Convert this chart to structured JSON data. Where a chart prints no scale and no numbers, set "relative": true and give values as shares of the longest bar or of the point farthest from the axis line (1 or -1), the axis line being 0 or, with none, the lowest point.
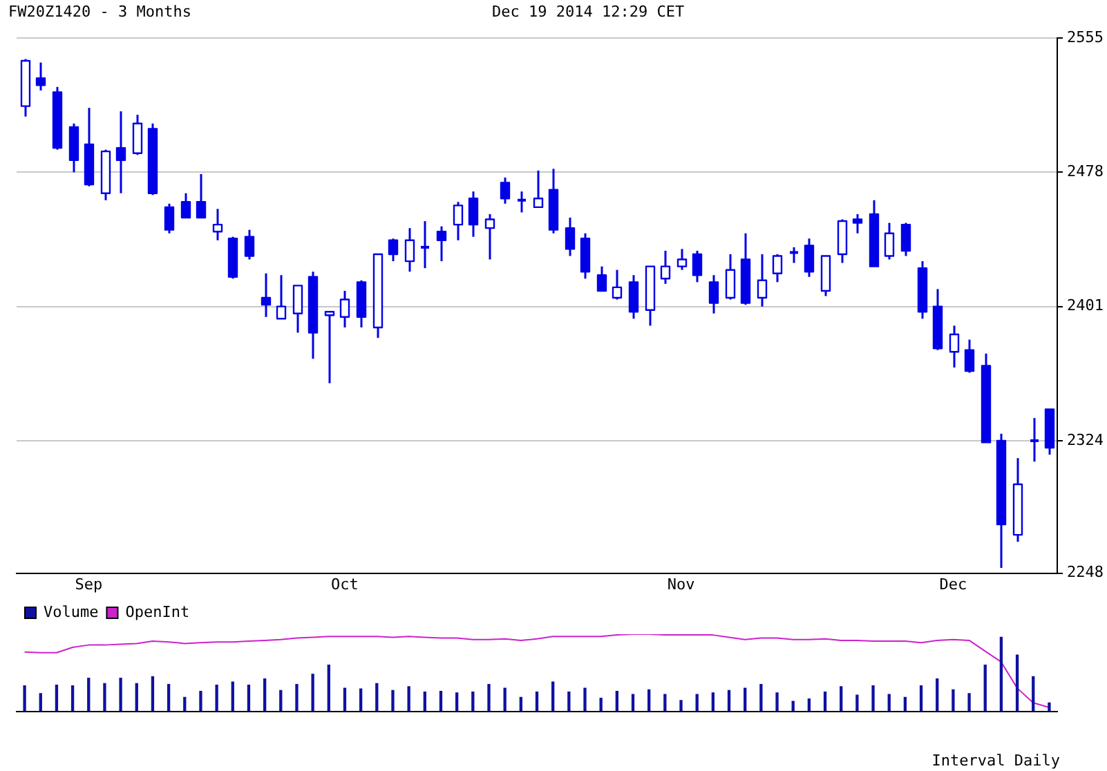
{
  "chart_data": [
    {
      "type": "candlestick",
      "title": "FW20Z1420 - 3 Months",
      "subtitle": "Dec 19 2014 12:29 CET",
      "color": "#0000e6",
      "grid": "y",
      "ylim": [
        2248,
        2555
      ],
      "yticks": [
        2248,
        2324,
        2401,
        2478,
        2555
      ],
      "categories": [
        null,
        null,
        null,
        null,
        "Sep",
        null,
        null,
        null,
        null,
        null,
        null,
        null,
        null,
        null,
        null,
        null,
        null,
        null,
        null,
        null,
        "Oct",
        null,
        null,
        null,
        null,
        null,
        null,
        null,
        null,
        null,
        null,
        null,
        null,
        null,
        null,
        null,
        null,
        null,
        null,
        null,
        null,
        "Nov",
        null,
        null,
        null,
        null,
        null,
        null,
        null,
        null,
        null,
        null,
        null,
        null,
        null,
        null,
        null,
        null,
        "Dec",
        null,
        null,
        null,
        null,
        null,
        null
      ],
      "colors": [
        "#ffffff",
        "#0000e6",
        "#0000e6",
        "#0000e6",
        "#0000e6",
        "#ffffff",
        "#0000e6",
        "#ffffff",
        "#0000e6",
        "#0000e6",
        "#0000e6",
        "#0000e6",
        "#ffffff",
        "#0000e6",
        "#0000e6",
        "#0000e6",
        "#ffffff",
        "#ffffff",
        "#0000e6",
        "#ffffff",
        "#ffffff",
        "#0000e6",
        "#ffffff",
        "#0000e6",
        "#ffffff",
        "#0000e6",
        "#0000e6",
        "#ffffff",
        "#0000e6",
        "#ffffff",
        "#0000e6",
        "#0000e6",
        "#ffffff",
        "#0000e6",
        "#0000e6",
        "#0000e6",
        "#0000e6",
        "#ffffff",
        "#0000e6",
        "#ffffff",
        "#ffffff",
        "#ffffff",
        "#0000e6",
        "#0000e6",
        "#ffffff",
        "#0000e6",
        "#ffffff",
        "#ffffff",
        "#0000e6",
        "#0000e6",
        "#ffffff",
        "#ffffff",
        "#0000e6",
        "#0000e6",
        "#ffffff",
        "#0000e6",
        "#0000e6",
        "#0000e6",
        "#ffffff",
        "#0000e6",
        "#0000e6",
        "#0000e6",
        "#ffffff",
        "#0000e6",
        "#0000e6"
      ],
      "ohlc": [
        [
          2516,
          2543,
          2510,
          2542
        ],
        [
          2532,
          2541,
          2525,
          2528
        ],
        [
          2524,
          2527,
          2491,
          2492
        ],
        [
          2504,
          2506,
          2478,
          2485
        ],
        [
          2494,
          2515,
          2470,
          2471
        ],
        [
          2466,
          2491,
          2462,
          2490
        ],
        [
          2492,
          2513,
          2466,
          2485
        ],
        [
          2489,
          2511,
          2488,
          2506
        ],
        [
          2503,
          2506,
          2465,
          2466
        ],
        [
          2458,
          2460,
          2443,
          2445
        ],
        [
          2461,
          2466,
          2452,
          2452
        ],
        [
          2461,
          2477,
          2452,
          2452
        ],
        [
          2444,
          2457,
          2439,
          2448
        ],
        [
          2440,
          2441,
          2417,
          2418
        ],
        [
          2441,
          2445,
          2428,
          2430
        ],
        [
          2406,
          2420,
          2395,
          2402
        ],
        [
          2394,
          2419,
          2394,
          2401
        ],
        [
          2397,
          2413,
          2386,
          2413
        ],
        [
          2418,
          2421,
          2371,
          2386
        ],
        [
          2396,
          2398,
          2357,
          2398
        ],
        [
          2395,
          2410,
          2389,
          2405
        ],
        [
          2415,
          2416,
          2389,
          2395
        ],
        [
          2389,
          2431,
          2383,
          2431
        ],
        [
          2439,
          2440,
          2427,
          2431
        ],
        [
          2427,
          2446,
          2421,
          2439
        ],
        [
          2435,
          2450,
          2423,
          2435
        ],
        [
          2444,
          2447,
          2427,
          2439
        ],
        [
          2448,
          2461,
          2439,
          2459
        ],
        [
          2463,
          2467,
          2441,
          2448
        ],
        [
          2446,
          2454,
          2428,
          2451
        ],
        [
          2472,
          2475,
          2460,
          2463
        ],
        [
          2462,
          2467,
          2455,
          2462
        ],
        [
          2458,
          2479,
          2458,
          2463
        ],
        [
          2468,
          2480,
          2443,
          2445
        ],
        [
          2446,
          2452,
          2430,
          2434
        ],
        [
          2440,
          2443,
          2417,
          2421
        ],
        [
          2419,
          2424,
          2410,
          2410
        ],
        [
          2406,
          2422,
          2405,
          2412
        ],
        [
          2415,
          2419,
          2394,
          2398
        ],
        [
          2399,
          2424,
          2390,
          2424
        ],
        [
          2417,
          2433,
          2414,
          2424
        ],
        [
          2424,
          2434,
          2422,
          2428
        ],
        [
          2431,
          2433,
          2415,
          2419
        ],
        [
          2415,
          2419,
          2397,
          2403
        ],
        [
          2406,
          2431,
          2405,
          2422
        ],
        [
          2428,
          2443,
          2402,
          2403
        ],
        [
          2406,
          2431,
          2401,
          2416
        ],
        [
          2420,
          2431,
          2415,
          2430
        ],
        [
          2432,
          2435,
          2426,
          2432
        ],
        [
          2436,
          2440,
          2418,
          2421
        ],
        [
          2410,
          2430,
          2407,
          2430
        ],
        [
          2431,
          2451,
          2426,
          2450
        ],
        [
          2451,
          2454,
          2443,
          2449
        ],
        [
          2454,
          2462,
          2424,
          2424
        ],
        [
          2430,
          2449,
          2428,
          2443
        ],
        [
          2448,
          2449,
          2430,
          2433
        ],
        [
          2423,
          2427,
          2394,
          2398
        ],
        [
          2401,
          2411,
          2376,
          2377
        ],
        [
          2375,
          2390,
          2366,
          2385
        ],
        [
          2376,
          2382,
          2363,
          2364
        ],
        [
          2367,
          2374,
          2323,
          2323
        ],
        [
          2324,
          2328,
          2251,
          2276
        ],
        [
          2270,
          2314,
          2266,
          2299
        ],
        [
          2324,
          2337,
          2312,
          2324
        ],
        [
          2342,
          2342,
          2316,
          2320
        ]
      ]
    },
    {
      "type": "bar",
      "relative": true,
      "legend": "top left",
      "marker": "none",
      "annotations": [
        "Interval Daily"
      ],
      "categories": [
        null,
        null,
        null,
        null,
        null,
        null,
        null,
        null,
        null,
        null,
        null,
        null,
        null,
        null,
        null,
        null,
        null,
        null,
        null,
        null,
        null,
        null,
        null,
        null,
        null,
        null,
        null,
        null,
        null,
        null,
        null,
        null,
        null,
        null,
        null,
        null,
        null,
        null,
        null,
        null,
        null,
        null,
        null,
        null,
        null,
        null,
        null,
        null,
        null,
        null,
        null,
        null,
        null,
        null,
        null,
        null,
        null,
        null,
        null,
        null,
        null,
        null,
        null,
        null,
        null
      ],
      "series": [
        {
          "name": "Volume",
          "color": "#1010a0",
          "values": [
            0.33,
            0.23,
            0.34,
            0.33,
            0.43,
            0.36,
            0.43,
            0.36,
            0.45,
            0.35,
            0.18,
            0.26,
            0.34,
            0.38,
            0.34,
            0.42,
            0.27,
            0.35,
            0.48,
            0.6,
            0.3,
            0.29,
            0.36,
            0.27,
            0.32,
            0.25,
            0.26,
            0.24,
            0.25,
            0.35,
            0.3,
            0.18,
            0.25,
            0.38,
            0.25,
            0.3,
            0.17,
            0.26,
            0.22,
            0.28,
            0.22,
            0.14,
            0.22,
            0.24,
            0.27,
            0.3,
            0.35,
            0.24,
            0.13,
            0.16,
            0.25,
            0.32,
            0.21,
            0.33,
            0.22,
            0.18,
            0.33,
            0.42,
            0.28,
            0.23,
            0.6,
            0.96,
            0.73,
            0.45,
            0.11
          ]
        },
        {
          "name": "OpenInt",
          "type": "line",
          "color": "#cc22cc",
          "values": [
            0.77,
            0.76,
            0.76,
            0.83,
            0.86,
            0.86,
            0.87,
            0.88,
            0.91,
            0.9,
            0.88,
            0.89,
            0.9,
            0.9,
            0.91,
            0.92,
            0.93,
            0.95,
            0.96,
            0.97,
            0.97,
            0.97,
            0.97,
            0.96,
            0.97,
            0.96,
            0.95,
            0.95,
            0.93,
            0.93,
            0.94,
            0.92,
            0.94,
            0.97,
            0.97,
            0.97,
            0.97,
            0.99,
            1.0,
            1.0,
            0.99,
            0.99,
            0.99,
            0.99,
            0.96,
            0.93,
            0.95,
            0.95,
            0.93,
            0.93,
            0.94,
            0.92,
            0.92,
            0.91,
            0.91,
            0.91,
            0.89,
            0.92,
            0.93,
            0.92,
            0.78,
            0.64,
            0.3,
            0.11,
            0.05
          ]
        }
      ]
    }
  ]
}
